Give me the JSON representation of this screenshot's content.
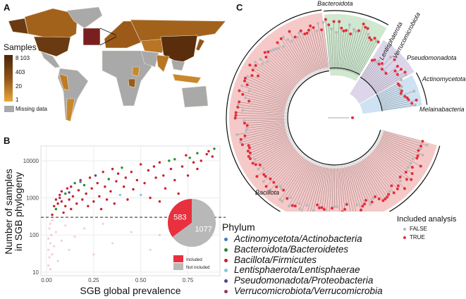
{
  "panels": {
    "a": "A",
    "b": "B",
    "c": "C"
  },
  "map": {
    "legend_title": "Samples",
    "ticks": [
      "8 103",
      "403",
      "20",
      "1"
    ],
    "missing_label": "Missing data",
    "colors": {
      "high": "#4a2508",
      "mid": "#8f5417",
      "low": "#e8a83a",
      "missing": "#a9a9a9"
    }
  },
  "chart_data": [
    {
      "type": "scatter",
      "xlabel": "SGB global prevalence",
      "ylabel": "Number of samples\nin SGB phylogeny",
      "ylabel_lines": [
        "Number of samples",
        "in SGB phylogeny"
      ],
      "xlim": [
        -0.03,
        0.92
      ],
      "ylim": [
        8,
        25000
      ],
      "yscale": "log",
      "x_ticks": [
        "0.00",
        "0.25",
        "0.50",
        "0.75"
      ],
      "x_tick_values": [
        0,
        0.25,
        0.5,
        0.75
      ],
      "y_ticks": [
        "10",
        "100",
        "1000",
        "10000"
      ],
      "y_tick_values": [
        10,
        100,
        1000,
        10000
      ],
      "grid": true,
      "threshold": 300,
      "phylum_colors": {
        "A": "#3c7dc4",
        "B": "#2b8a2b",
        "F": "#c81e2a",
        "L": "#86c6dc",
        "P": "#5a3f8e",
        "V": "#9a3563"
      },
      "included_points": [
        [
          0.03,
          350,
          "F"
        ],
        [
          0.04,
          600,
          "F"
        ],
        [
          0.05,
          900,
          "F"
        ],
        [
          0.05,
          500,
          "B"
        ],
        [
          0.06,
          700,
          "F"
        ],
        [
          0.07,
          1200,
          "F"
        ],
        [
          0.08,
          800,
          "F"
        ],
        [
          0.08,
          1500,
          "F"
        ],
        [
          0.09,
          400,
          "F"
        ],
        [
          0.1,
          1300,
          "B"
        ],
        [
          0.1,
          600,
          "F"
        ],
        [
          0.11,
          1800,
          "F"
        ],
        [
          0.12,
          900,
          "F"
        ],
        [
          0.13,
          2000,
          "F"
        ],
        [
          0.13,
          500,
          "F"
        ],
        [
          0.14,
          1100,
          "F"
        ],
        [
          0.15,
          2500,
          "B"
        ],
        [
          0.16,
          700,
          "F"
        ],
        [
          0.17,
          1600,
          "F"
        ],
        [
          0.18,
          3000,
          "F"
        ],
        [
          0.19,
          900,
          "F"
        ],
        [
          0.2,
          2200,
          "B"
        ],
        [
          0.21,
          1300,
          "F"
        ],
        [
          0.22,
          600,
          "F"
        ],
        [
          0.23,
          3500,
          "F"
        ],
        [
          0.24,
          1800,
          "F"
        ],
        [
          0.25,
          800,
          "F"
        ],
        [
          0.26,
          4000,
          "P"
        ],
        [
          0.27,
          2500,
          "F"
        ],
        [
          0.28,
          1100,
          "F"
        ],
        [
          0.29,
          500,
          "F"
        ],
        [
          0.3,
          5000,
          "F"
        ],
        [
          0.31,
          2000,
          "F"
        ],
        [
          0.32,
          900,
          "F"
        ],
        [
          0.33,
          3200,
          "B"
        ],
        [
          0.34,
          1500,
          "F"
        ],
        [
          0.35,
          6000,
          "F"
        ],
        [
          0.36,
          700,
          "F"
        ],
        [
          0.37,
          2800,
          "F"
        ],
        [
          0.38,
          4500,
          "F"
        ],
        [
          0.39,
          1200,
          "L"
        ],
        [
          0.4,
          6500,
          "B"
        ],
        [
          0.41,
          2000,
          "F"
        ],
        [
          0.42,
          3500,
          "F"
        ],
        [
          0.43,
          900,
          "F"
        ],
        [
          0.45,
          5000,
          "F"
        ],
        [
          0.46,
          1700,
          "F"
        ],
        [
          0.48,
          3000,
          "F"
        ],
        [
          0.5,
          8000,
          "F"
        ],
        [
          0.5,
          1200,
          "L"
        ],
        [
          0.52,
          2500,
          "F"
        ],
        [
          0.54,
          5500,
          "F"
        ],
        [
          0.55,
          1000,
          "F"
        ],
        [
          0.57,
          7000,
          "F"
        ],
        [
          0.58,
          3500,
          "F"
        ],
        [
          0.6,
          800,
          "F"
        ],
        [
          0.6,
          9000,
          "F"
        ],
        [
          0.62,
          4000,
          "F"
        ],
        [
          0.63,
          1800,
          "F"
        ],
        [
          0.65,
          10000,
          "B"
        ],
        [
          0.66,
          6000,
          "F"
        ],
        [
          0.68,
          3000,
          "F"
        ],
        [
          0.68,
          11000,
          "B"
        ],
        [
          0.7,
          1300,
          "F"
        ],
        [
          0.72,
          7000,
          "F"
        ],
        [
          0.74,
          14000,
          "F"
        ],
        [
          0.75,
          4000,
          "F"
        ],
        [
          0.76,
          12000,
          "B"
        ],
        [
          0.78,
          9000,
          "F"
        ],
        [
          0.8,
          6000,
          "F"
        ],
        [
          0.8,
          16000,
          "B"
        ],
        [
          0.82,
          10000,
          "F"
        ],
        [
          0.85,
          15000,
          "F"
        ],
        [
          0.86,
          18000,
          "F"
        ],
        [
          0.88,
          13000,
          "F"
        ],
        [
          0.89,
          21000,
          "B"
        ],
        [
          0.07,
          1000,
          "V"
        ],
        [
          0.12,
          1400,
          "P"
        ],
        [
          0.18,
          2700,
          "A"
        ]
      ],
      "excluded_points": [
        [
          0.01,
          15
        ],
        [
          0.01,
          40
        ],
        [
          0.01,
          80
        ],
        [
          0.015,
          25
        ],
        [
          0.015,
          150
        ],
        [
          0.02,
          60
        ],
        [
          0.02,
          200
        ],
        [
          0.02,
          12
        ],
        [
          0.025,
          100
        ],
        [
          0.03,
          30
        ],
        [
          0.03,
          250
        ],
        [
          0.04,
          50
        ],
        [
          0.05,
          120
        ],
        [
          0.06,
          20
        ],
        [
          0.08,
          70
        ],
        [
          0.1,
          180
        ],
        [
          0.12,
          40
        ],
        [
          0.15,
          90
        ],
        [
          0.2,
          150
        ],
        [
          0.25,
          30
        ],
        [
          0.3,
          200
        ],
        [
          0.35,
          60
        ],
        [
          0.45,
          120
        ],
        [
          0.55,
          40
        ],
        [
          0.6,
          100
        ],
        [
          0.7,
          180
        ]
      ]
    },
    {
      "type": "pie",
      "values": [
        583,
        1077
      ],
      "labels": [
        "583",
        "1077"
      ],
      "legend": [
        "Included",
        "Not included"
      ],
      "colors": [
        "#e8303f",
        "#b8b8b8"
      ]
    }
  ],
  "phylum_legend": {
    "title": "Phylum",
    "items": [
      {
        "label": "Actinomycetota/Actinobacteria",
        "color": "#3c7dc4"
      },
      {
        "label": "Bacteroidota/Bacteroidetes",
        "color": "#2b8a2b"
      },
      {
        "label": "Bacillota/Firmicutes",
        "color": "#c81e2a"
      },
      {
        "label": "Lentisphaerota/Lentisphaerae",
        "color": "#86c6dc"
      },
      {
        "label": "Pseudomonadota/Proteobacteria",
        "color": "#5a3f8e"
      },
      {
        "label": "Verrucomicrobiota/Verrucomicrobia",
        "color": "#9a3563"
      }
    ]
  },
  "tree": {
    "clades": {
      "bacteroidota": "Bacteroidota",
      "lentisphaerota": "Lentisphaerota",
      "verrucomicrobiota": "Verrucomicrobiota",
      "pseudomonadota": "Pseudomonadota",
      "actinomycetota": "Actinomycetota",
      "melainabacteria": "Melainabacteria",
      "bacillota": "Bacillota"
    },
    "clade_colors": {
      "bacillota": "#f6c9c9",
      "bacteroidota": "#cfe8cf",
      "pseudomonadota": "#ddd6ea",
      "actinomycetota": "#cfe2f3"
    },
    "legend_title": "Included analysis",
    "legend": [
      {
        "label": "FALSE",
        "color": "#b8b8b8"
      },
      {
        "label": "TRUE",
        "color": "#e0303f"
      }
    ]
  }
}
